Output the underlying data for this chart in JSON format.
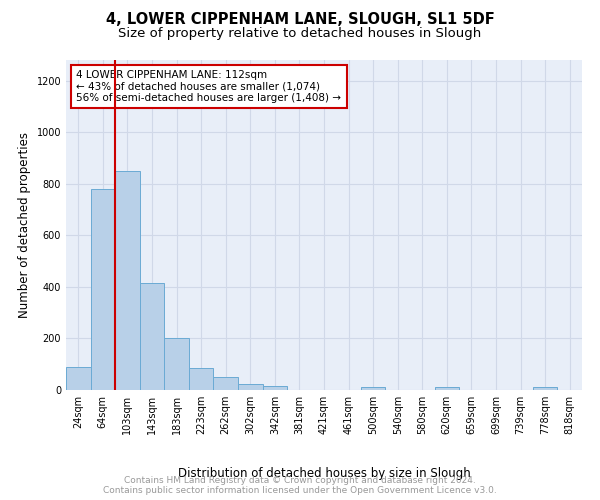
{
  "title": "4, LOWER CIPPENHAM LANE, SLOUGH, SL1 5DF",
  "subtitle": "Size of property relative to detached houses in Slough",
  "xlabel": "Distribution of detached houses by size in Slough",
  "ylabel": "Number of detached properties",
  "categories": [
    "24sqm",
    "64sqm",
    "103sqm",
    "143sqm",
    "183sqm",
    "223sqm",
    "262sqm",
    "302sqm",
    "342sqm",
    "381sqm",
    "421sqm",
    "461sqm",
    "500sqm",
    "540sqm",
    "580sqm",
    "620sqm",
    "659sqm",
    "699sqm",
    "739sqm",
    "778sqm",
    "818sqm"
  ],
  "values": [
    90,
    780,
    850,
    415,
    200,
    85,
    50,
    25,
    15,
    0,
    0,
    0,
    10,
    0,
    0,
    10,
    0,
    0,
    0,
    10,
    0
  ],
  "bar_color": "#b8d0e8",
  "bar_edge_color": "#6aaad4",
  "vline_color": "#cc0000",
  "annotation_text": "4 LOWER CIPPENHAM LANE: 112sqm\n← 43% of detached houses are smaller (1,074)\n56% of semi-detached houses are larger (1,408) →",
  "annotation_box_color": "#ffffff",
  "annotation_box_edge": "#cc0000",
  "ylim": [
    0,
    1280
  ],
  "yticks": [
    0,
    200,
    400,
    600,
    800,
    1000,
    1200
  ],
  "grid_color": "#d0d8e8",
  "background_color": "#e8eef8",
  "footer_text": "Contains HM Land Registry data © Crown copyright and database right 2024.\nContains public sector information licensed under the Open Government Licence v3.0.",
  "title_fontsize": 10.5,
  "subtitle_fontsize": 9.5,
  "xlabel_fontsize": 8.5,
  "ylabel_fontsize": 8.5,
  "tick_fontsize": 7,
  "annotation_fontsize": 7.5,
  "footer_fontsize": 6.5
}
